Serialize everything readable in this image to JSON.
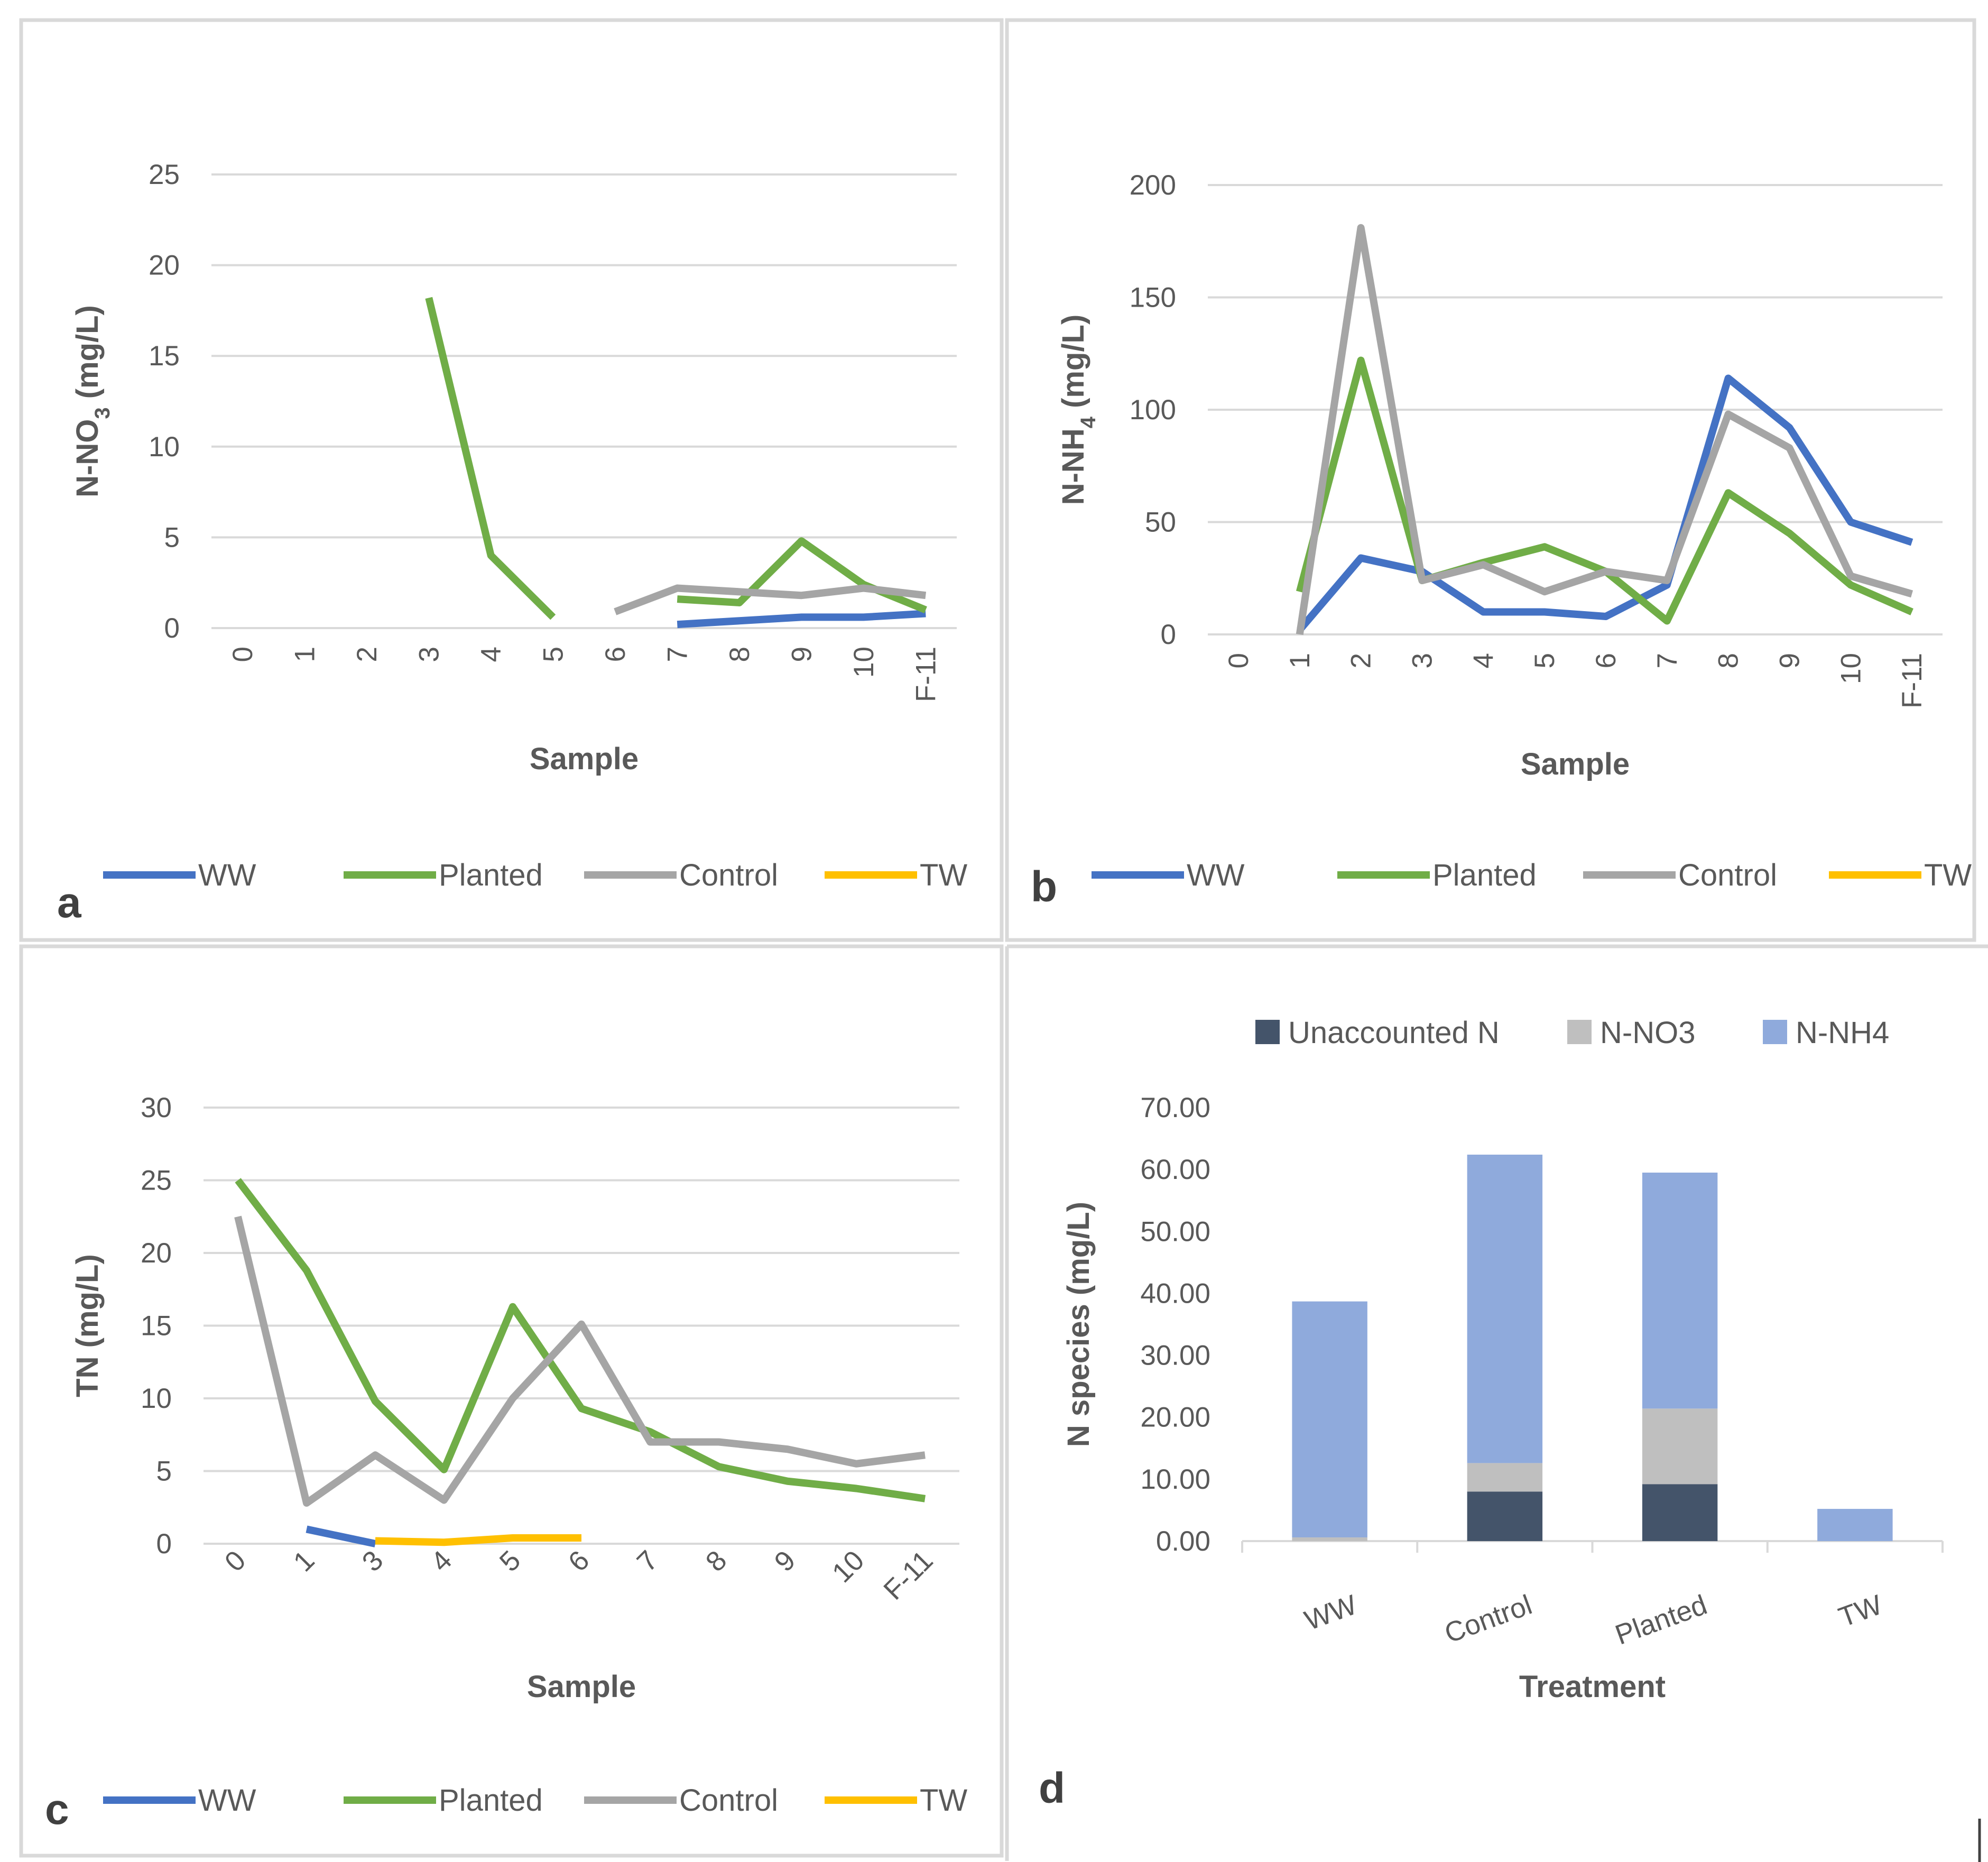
{
  "colors": {
    "WW": "#4472c4",
    "Planted": "#70ad47",
    "Control": "#a5a5a5",
    "TW": "#ffc000",
    "Unaccounted N": "#44546a",
    "N-NO3": "#bfbfbf",
    "N-NH4": "#8faadc"
  },
  "chart_data": [
    {
      "panel": "a",
      "type": "line",
      "xlabel": "Sample",
      "ylabel": "N-NO3 (mg/L)",
      "x": [
        "0",
        "1",
        "2",
        "3",
        "4",
        "5",
        "6",
        "7",
        "8",
        "9",
        "10",
        "F-11"
      ],
      "ylim": [
        0,
        25
      ],
      "yticks": [
        "0",
        "5",
        "10",
        "15",
        "20",
        "25"
      ],
      "grid": true,
      "legend_position": "bottom",
      "series": [
        {
          "name": "WW",
          "values": [
            null,
            null,
            null,
            null,
            null,
            null,
            null,
            0.2,
            0.4,
            0.6,
            0.6,
            0.8
          ]
        },
        {
          "name": "Planted",
          "values": [
            null,
            null,
            null,
            18.2,
            4.0,
            0.6,
            null,
            1.6,
            1.4,
            4.8,
            2.4,
            1.0
          ]
        },
        {
          "name": "Control",
          "values": [
            null,
            null,
            null,
            null,
            null,
            null,
            0.9,
            2.2,
            2.0,
            1.8,
            2.2,
            1.8
          ]
        },
        {
          "name": "TW",
          "values": [
            null,
            null,
            null,
            null,
            null,
            null,
            null,
            null,
            null,
            null,
            null,
            null
          ]
        }
      ]
    },
    {
      "panel": "b",
      "type": "line",
      "xlabel": "Sample",
      "ylabel": "N-NH4 (mg/L)",
      "x": [
        "0",
        "1",
        "2",
        "3",
        "4",
        "5",
        "6",
        "7",
        "8",
        "9",
        "10",
        "F-11"
      ],
      "ylim": [
        0,
        200
      ],
      "yticks": [
        "0",
        "50",
        "100",
        "150",
        "200"
      ],
      "grid": true,
      "legend_position": "bottom",
      "series": [
        {
          "name": "WW",
          "values": [
            null,
            2,
            34,
            28,
            10,
            10,
            8,
            22,
            114,
            92,
            50,
            41
          ]
        },
        {
          "name": "Planted",
          "values": [
            null,
            19,
            122,
            24,
            32,
            39,
            28,
            6,
            63,
            45,
            22,
            10
          ]
        },
        {
          "name": "Control",
          "values": [
            null,
            0,
            181,
            24,
            31,
            19,
            28,
            24,
            98,
            83,
            26,
            18
          ]
        },
        {
          "name": "TW",
          "values": [
            null,
            null,
            null,
            null,
            null,
            null,
            null,
            null,
            null,
            null,
            null,
            null
          ]
        }
      ]
    },
    {
      "panel": "c",
      "type": "line",
      "xlabel": "Sample",
      "ylabel": "TN (mg/L)",
      "x": [
        "0",
        "1",
        "3",
        "4",
        "5",
        "6",
        "7",
        "8",
        "9",
        "10",
        "F-11"
      ],
      "ylim": [
        0,
        30
      ],
      "yticks": [
        "0",
        "5",
        "10",
        "15",
        "20",
        "25",
        "30"
      ],
      "grid": true,
      "legend_position": "bottom",
      "series": [
        {
          "name": "WW",
          "values": [
            null,
            1.0,
            0.0,
            null,
            null,
            null,
            null,
            null,
            null,
            null,
            null
          ]
        },
        {
          "name": "Planted",
          "values": [
            25.0,
            18.8,
            9.8,
            5.1,
            16.3,
            9.3,
            7.7,
            5.3,
            4.3,
            3.8,
            3.1
          ]
        },
        {
          "name": "Control",
          "values": [
            22.5,
            2.8,
            6.1,
            3.0,
            10.0,
            15.1,
            7.0,
            7.0,
            6.5,
            5.5,
            6.1
          ]
        },
        {
          "name": "TW",
          "values": [
            null,
            null,
            0.2,
            0.1,
            0.4,
            0.4,
            null,
            null,
            null,
            null,
            null
          ]
        }
      ]
    },
    {
      "panel": "d",
      "type": "bar",
      "stacked": true,
      "xlabel": "Treatment",
      "ylabel": "N species (mg/L)",
      "categories": [
        "WW",
        "Control",
        "Planted",
        "TW"
      ],
      "ylim": [
        0,
        70
      ],
      "yticks": [
        "0.00",
        "10.00",
        "20.00",
        "30.00",
        "40.00",
        "50.00",
        "60.00",
        "70.00"
      ],
      "grid": false,
      "legend_position": "top",
      "series": [
        {
          "name": "Unaccounted N",
          "values": [
            0.0,
            8.0,
            9.2,
            0.0
          ]
        },
        {
          "name": "N-NO3",
          "values": [
            0.6,
            4.6,
            12.2,
            0.0
          ]
        },
        {
          "name": "N-NH4",
          "values": [
            38.1,
            49.8,
            38.1,
            5.2
          ]
        }
      ]
    }
  ]
}
